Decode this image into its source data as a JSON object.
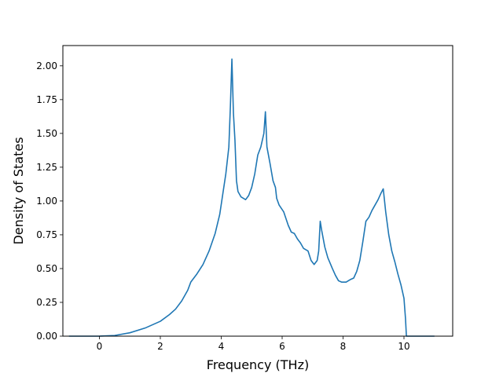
{
  "chart_data": {
    "type": "line",
    "title": "",
    "xlabel": "Frequency (THz)",
    "ylabel": "Density of States",
    "xlim": [
      -1.2,
      11.6
    ],
    "ylim": [
      0,
      2.15
    ],
    "xticks": [
      0,
      2,
      4,
      6,
      8,
      10
    ],
    "xtick_labels": [
      "0",
      "2",
      "4",
      "6",
      "8",
      "10"
    ],
    "yticks": [
      0,
      0.25,
      0.5,
      0.75,
      1.0,
      1.25,
      1.5,
      1.75,
      2.0
    ],
    "ytick_labels": [
      "0.00",
      "0.25",
      "0.50",
      "0.75",
      "1.00",
      "1.25",
      "1.50",
      "1.75",
      "2.00"
    ],
    "grid": false,
    "line_color": "#1f77b4",
    "series": [
      {
        "name": "",
        "points": [
          [
            -1.0,
            0.0
          ],
          [
            -0.5,
            0.0
          ],
          [
            0.0,
            0.0
          ],
          [
            0.5,
            0.005
          ],
          [
            1.0,
            0.025
          ],
          [
            1.5,
            0.06
          ],
          [
            2.0,
            0.11
          ],
          [
            2.3,
            0.16
          ],
          [
            2.5,
            0.2
          ],
          [
            2.7,
            0.26
          ],
          [
            2.9,
            0.34
          ],
          [
            3.0,
            0.4
          ],
          [
            3.2,
            0.46
          ],
          [
            3.4,
            0.53
          ],
          [
            3.6,
            0.63
          ],
          [
            3.8,
            0.76
          ],
          [
            3.95,
            0.9
          ],
          [
            4.05,
            1.05
          ],
          [
            4.15,
            1.2
          ],
          [
            4.25,
            1.4
          ],
          [
            4.3,
            1.7
          ],
          [
            4.35,
            2.05
          ],
          [
            4.4,
            1.65
          ],
          [
            4.45,
            1.45
          ],
          [
            4.5,
            1.15
          ],
          [
            4.55,
            1.07
          ],
          [
            4.65,
            1.03
          ],
          [
            4.8,
            1.01
          ],
          [
            4.9,
            1.04
          ],
          [
            5.0,
            1.1
          ],
          [
            5.1,
            1.2
          ],
          [
            5.2,
            1.34
          ],
          [
            5.3,
            1.4
          ],
          [
            5.4,
            1.5
          ],
          [
            5.45,
            1.66
          ],
          [
            5.5,
            1.4
          ],
          [
            5.6,
            1.28
          ],
          [
            5.7,
            1.15
          ],
          [
            5.78,
            1.1
          ],
          [
            5.82,
            1.02
          ],
          [
            5.9,
            0.97
          ],
          [
            6.05,
            0.92
          ],
          [
            6.2,
            0.82
          ],
          [
            6.3,
            0.77
          ],
          [
            6.4,
            0.76
          ],
          [
            6.5,
            0.72
          ],
          [
            6.6,
            0.69
          ],
          [
            6.7,
            0.65
          ],
          [
            6.85,
            0.63
          ],
          [
            6.95,
            0.56
          ],
          [
            7.05,
            0.53
          ],
          [
            7.15,
            0.56
          ],
          [
            7.2,
            0.63
          ],
          [
            7.25,
            0.85
          ],
          [
            7.3,
            0.78
          ],
          [
            7.4,
            0.66
          ],
          [
            7.5,
            0.58
          ],
          [
            7.65,
            0.5
          ],
          [
            7.75,
            0.45
          ],
          [
            7.85,
            0.41
          ],
          [
            7.95,
            0.4
          ],
          [
            8.1,
            0.4
          ],
          [
            8.25,
            0.42
          ],
          [
            8.35,
            0.43
          ],
          [
            8.45,
            0.48
          ],
          [
            8.55,
            0.56
          ],
          [
            8.65,
            0.7
          ],
          [
            8.75,
            0.85
          ],
          [
            8.85,
            0.88
          ],
          [
            8.95,
            0.93
          ],
          [
            9.05,
            0.97
          ],
          [
            9.15,
            1.01
          ],
          [
            9.25,
            1.06
          ],
          [
            9.32,
            1.09
          ],
          [
            9.4,
            0.92
          ],
          [
            9.5,
            0.75
          ],
          [
            9.6,
            0.63
          ],
          [
            9.7,
            0.55
          ],
          [
            9.8,
            0.46
          ],
          [
            9.9,
            0.38
          ],
          [
            10.0,
            0.28
          ],
          [
            10.05,
            0.13
          ],
          [
            10.08,
            0.0
          ],
          [
            10.5,
            0.0
          ],
          [
            11.0,
            0.0
          ]
        ]
      }
    ]
  }
}
